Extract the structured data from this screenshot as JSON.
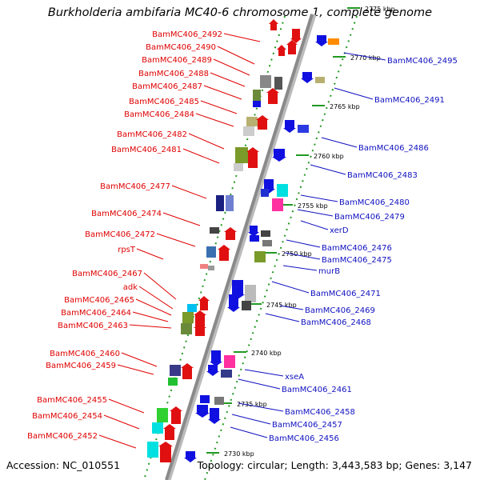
{
  "title": "Burkholderia ambifaria MC40-6 chromosome 1, complete genome",
  "accession": "Accession: NC_010551",
  "summary": "Topology: circular; Length: 3,443,583 bp; Genes: 3,147",
  "colors": {
    "left_label": "#e00000",
    "right_label": "#1010c0",
    "tick": "#229922",
    "backbone": "#888888"
  },
  "ticks": [
    "2775 kbp",
    "2770 kbp",
    "2765 kbp",
    "2760 kbp",
    "2755 kbp",
    "2750 kbp",
    "2745 kbp",
    "2740 kbp",
    "2735 kbp",
    "2730 kbp"
  ],
  "left_labels": [
    "BamMC406_2492",
    "BamMC406_2490",
    "BamMC406_2489",
    "BamMC406_2488",
    "BamMC406_2487",
    "BamMC406_2485",
    "BamMC406_2484",
    "BamMC406_2482",
    "BamMC406_2481",
    "BamMC406_2477",
    "BamMC406_2474",
    "BamMC406_2472",
    "rpsT",
    "BamMC406_2467",
    "adk",
    "BamMC406_2465",
    "BamMC406_2464",
    "BamMC406_2463",
    "BamMC406_2460",
    "BamMC406_2459",
    "BamMC406_2455",
    "BamMC406_2454",
    "BamMC406_2452"
  ],
  "right_labels": [
    "BamMC406_2495",
    "BamMC406_2491",
    "BamMC406_2486",
    "BamMC406_2483",
    "BamMC406_2480",
    "BamMC406_2479",
    "xerD",
    "BamMC406_2476",
    "BamMC406_2475",
    "murB",
    "BamMC406_2471",
    "BamMC406_2469",
    "BamMC406_2468",
    "xseA",
    "BamMC406_2461",
    "BamMC406_2458",
    "BamMC406_2457",
    "BamMC406_2456"
  ]
}
